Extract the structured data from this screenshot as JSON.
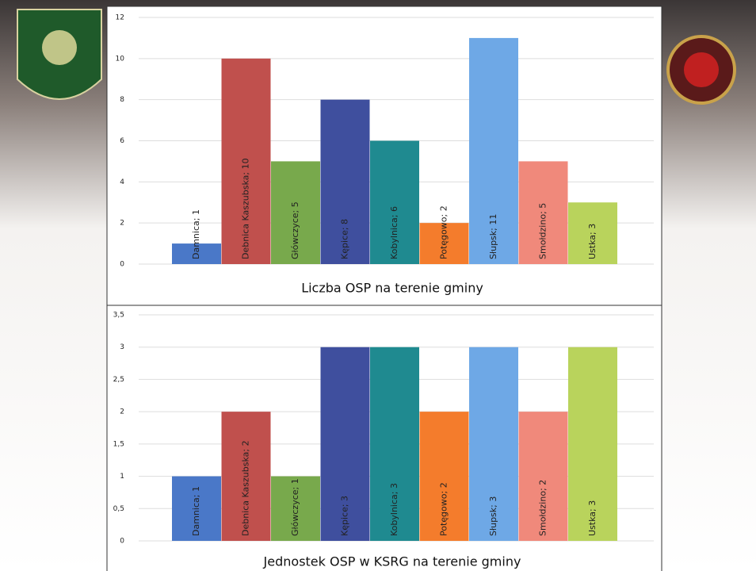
{
  "chart_data": [
    {
      "type": "bar",
      "title": "Liczba OSP na terenie gminy",
      "values": [
        1,
        10,
        5,
        8,
        6,
        2,
        11,
        5,
        3
      ],
      "value_labels": [
        "Damnica; 1",
        "Debnica Kaszubska; 10",
        "Główczyce; 5",
        "Kępice; 8",
        "Kobylnica; 6",
        "Potęgowo; 2",
        "Słupsk; 11",
        "Smołdzino; 5",
        "Ustka; 3"
      ],
      "colors": [
        "#4a78c8",
        "#c0504d",
        "#78a94c",
        "#3f4f9e",
        "#1f8a90",
        "#f47c2c",
        "#6ea8e6",
        "#f0897b",
        "#b9d35c"
      ],
      "ylim": [
        0,
        12
      ],
      "yticks": [
        0,
        2,
        4,
        6,
        8,
        10,
        12
      ],
      "grid": true
    },
    {
      "type": "bar",
      "title": "Jednostek OSP w KSRG na terenie gminy",
      "values": [
        1,
        2,
        1,
        3,
        3,
        2,
        3,
        2,
        3
      ],
      "value_labels": [
        "Damnica; 1",
        "Debnica Kaszubska; 2",
        "Główczyce; 1",
        "Kępice; 3",
        "Kobylnica; 3",
        "Potęgowo; 2",
        "Słupsk; 3",
        "Smołdzino; 2",
        "Ustka; 3"
      ],
      "colors": [
        "#4a78c8",
        "#c0504d",
        "#78a94c",
        "#3f4f9e",
        "#1f8a90",
        "#f47c2c",
        "#6ea8e6",
        "#f0897b",
        "#b9d35c"
      ],
      "ylim": [
        0,
        3.5
      ],
      "yticks": [
        0,
        {
          "value": 0.5,
          "label": "0,5"
        },
        1,
        {
          "value": 1.5,
          "label": "1,5"
        },
        2,
        {
          "value": 2.5,
          "label": "2,5"
        },
        3,
        {
          "value": 3.5,
          "label": "3,5"
        }
      ],
      "grid": true
    }
  ]
}
